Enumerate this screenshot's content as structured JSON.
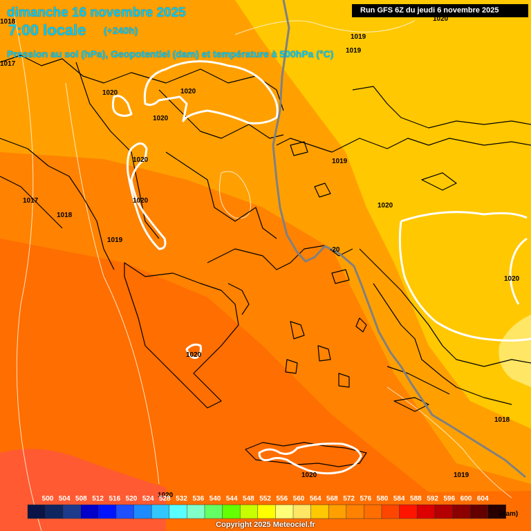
{
  "header": {
    "date": "dimanche 16 novembre 2025",
    "time": "7:00 locale",
    "lead": "(+240h)",
    "variable": "Pression au sol (hPa), Geopotentiel (dam) et température à 500hPa (°C)"
  },
  "run_info": "Run GFS 6Z du jeudi 6 novembre 2025",
  "pressure_labels": [
    "1018",
    "1017",
    "1019",
    "1019",
    "1020",
    "1020",
    "1020",
    "1020",
    "1020",
    "1020",
    "1019",
    "1017",
    "1018",
    "1019",
    "1020",
    "1020",
    "1020",
    "1018",
    "1019",
    "1020",
    "1020"
  ],
  "temperature_label": "-20",
  "legend": {
    "values": [
      "500",
      "504",
      "508",
      "512",
      "516",
      "520",
      "524",
      "528",
      "532",
      "536",
      "540",
      "544",
      "548",
      "552",
      "556",
      "560",
      "564",
      "568",
      "572",
      "576",
      "580",
      "584",
      "588",
      "592",
      "596",
      "600",
      "604"
    ],
    "colors": [
      "#0a1446",
      "#102660",
      "#1e3a8c",
      "#0000c8",
      "#0014ff",
      "#1e50ff",
      "#1e8cff",
      "#32c8ff",
      "#5affff",
      "#82ffc8",
      "#64ff64",
      "#64ff00",
      "#c8ff00",
      "#ffff00",
      "#ffff78",
      "#ffe664",
      "#ffc800",
      "#ffa000",
      "#ff8200",
      "#ff6e00",
      "#ff4600",
      "#ff1400",
      "#dc0000",
      "#b40000",
      "#8c0000",
      "#640000",
      "#280000"
    ],
    "unit": "(dam)"
  },
  "copyright": "Copyright 2025 Meteociel.fr",
  "colors": {
    "band_560": "#ffc800",
    "band_564": "#ffa000",
    "band_568": "#ff8200",
    "band_572": "#ff6e00",
    "band_556": "#ffe664",
    "title_text": "#00ccff"
  }
}
